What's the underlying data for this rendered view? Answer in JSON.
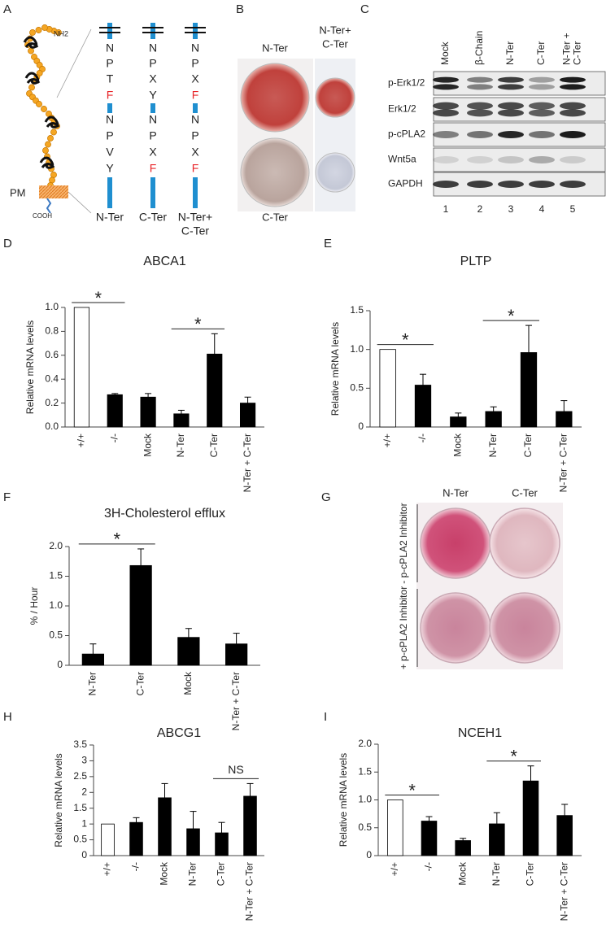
{
  "panel_labels": [
    "A",
    "B",
    "C",
    "D",
    "E",
    "F",
    "G",
    "H",
    "I"
  ],
  "panel_a": {
    "top_label": "NH2",
    "membrane_label": "PM",
    "bottom_label": "COOH",
    "columns": [
      {
        "label": [
          "N-Ter"
        ],
        "residues": [
          "N",
          "P",
          "T",
          "F",
          "N",
          "P",
          "V",
          "Y"
        ],
        "colors": [
          "#222222",
          "#222222",
          "#222222",
          "#e8262a",
          "#222222",
          "#222222",
          "#222222",
          "#222222"
        ]
      },
      {
        "label": [
          "C-Ter"
        ],
        "residues": [
          "N",
          "P",
          "X",
          "Y",
          "N",
          "P",
          "X",
          "F"
        ],
        "colors": [
          "#222222",
          "#222222",
          "#222222",
          "#222222",
          "#222222",
          "#222222",
          "#222222",
          "#e8262a"
        ]
      },
      {
        "label": [
          "N-Ter+",
          "C-Ter"
        ],
        "residues": [
          "N",
          "P",
          "X",
          "F",
          "N",
          "P",
          "X",
          "F"
        ],
        "colors": [
          "#222222",
          "#222222",
          "#222222",
          "#e8262a",
          "#222222",
          "#222222",
          "#222222",
          "#e8262a"
        ]
      }
    ]
  },
  "panel_b": {
    "top_left": "N-Ter",
    "top_right": [
      "N-Ter+",
      "C-Ter"
    ],
    "bottom_left": "C-Ter"
  },
  "panel_c": {
    "lanes": [
      [
        "Mock"
      ],
      [
        "β-Chain"
      ],
      [
        "N-Ter"
      ],
      [
        "C-Ter"
      ],
      [
        "N-Ter +",
        "C-Ter"
      ]
    ],
    "rows": [
      "p-Erk1/2",
      "Erk1/2",
      "p-cPLA2",
      "Wnt5a",
      "GAPDH"
    ],
    "lane_numbers": [
      "1",
      "2",
      "3",
      "4",
      "5"
    ]
  },
  "panel_g": {
    "columns": [
      "N-Ter",
      "C-Ter"
    ],
    "rows": [
      "- p-cPLA2 Inhibitor",
      "+ p-cPLA2 Inhibitor"
    ]
  },
  "chart_data": [
    {
      "type": "bar",
      "title": "ABCA1",
      "ylabel": "Relative mRNA levels",
      "categories": [
        "+/+",
        "-/-",
        "Mock",
        "N-Ter",
        "C-Ter",
        "N-Ter + C-Ter"
      ],
      "values": [
        1.0,
        0.27,
        0.25,
        0.11,
        0.61,
        0.2
      ],
      "errors": [
        0,
        0.01,
        0.03,
        0.03,
        0.17,
        0.05
      ],
      "colors": [
        "#ffffff",
        "#000000",
        "#000000",
        "#000000",
        "#000000",
        "#000000"
      ],
      "ylim": [
        0,
        1.0
      ],
      "yticks": [
        {
          "value": 0,
          "label": "0.0"
        },
        0.2,
        0.4,
        0.6,
        0.8,
        {
          "value": 1.0,
          "label": "1.0"
        }
      ],
      "annotations": [
        {
          "text": "*",
          "from": 0,
          "to": 1
        },
        {
          "text": "*",
          "from": 3,
          "to": 4
        }
      ]
    },
    {
      "type": "bar",
      "title": "PLTP",
      "ylabel": "Relative mRNA levels",
      "categories": [
        "+/+",
        "-/-",
        "Mock",
        "N-Ter",
        "C-Ter",
        "N-Ter + C-Ter"
      ],
      "values": [
        1.0,
        0.54,
        0.13,
        0.2,
        0.96,
        0.2
      ],
      "errors": [
        0,
        0.14,
        0.05,
        0.06,
        0.35,
        0.14
      ],
      "colors": [
        "#ffffff",
        "#000000",
        "#000000",
        "#000000",
        "#000000",
        "#000000"
      ],
      "ylim": [
        0,
        1.5
      ],
      "yticks": [
        0,
        0.5,
        {
          "value": 1.0,
          "label": "1.0"
        },
        1.5
      ],
      "annotations": [
        {
          "text": "*",
          "from": 0,
          "to": 1
        },
        {
          "text": "*",
          "from": 3,
          "to": 4
        }
      ]
    },
    {
      "type": "bar",
      "title": "3H-Cholesterol efflux",
      "ylabel": "% / Hour",
      "categories": [
        "N-Ter",
        "C-Ter",
        "Mock",
        "N-Ter + C-Ter"
      ],
      "values": [
        0.19,
        1.68,
        0.47,
        0.36
      ],
      "errors": [
        0.17,
        0.28,
        0.15,
        0.18
      ],
      "colors": [
        "#000000",
        "#000000",
        "#000000",
        "#000000"
      ],
      "ylim": [
        0,
        2.0
      ],
      "yticks": [
        0,
        0.5,
        {
          "value": 1.0,
          "label": "1.0"
        },
        1.5,
        {
          "value": 2.0,
          "label": "2.0"
        }
      ],
      "annotations": [
        {
          "text": "*",
          "from": 0,
          "to": 1
        }
      ]
    },
    {
      "type": "bar",
      "title": "ABCG1",
      "ylabel": "Relative mRNA levels",
      "categories": [
        "+/+",
        "-/-",
        "Mock",
        "N-Ter",
        "C-Ter",
        "N-Ter + C-Ter"
      ],
      "values": [
        1.0,
        1.05,
        1.83,
        0.85,
        0.72,
        1.88
      ],
      "errors": [
        0,
        0.15,
        0.45,
        0.55,
        0.33,
        0.4
      ],
      "colors": [
        "#ffffff",
        "#000000",
        "#000000",
        "#000000",
        "#000000",
        "#000000"
      ],
      "ylim": [
        0,
        3.5
      ],
      "yticks": [
        0,
        0.5,
        1,
        1.5,
        2,
        2.5,
        3,
        3.5
      ],
      "annotations": [
        {
          "text": "NS",
          "from": 4,
          "to": 5
        }
      ]
    },
    {
      "type": "bar",
      "title": "NCEH1",
      "ylabel": "Relative mRNA levels",
      "categories": [
        "+/+",
        "-/-",
        "Mock",
        "N-Ter",
        "C-Ter",
        "N-Ter + C-Ter"
      ],
      "values": [
        1.0,
        0.62,
        0.27,
        0.57,
        1.34,
        0.72
      ],
      "errors": [
        0,
        0.08,
        0.04,
        0.2,
        0.27,
        0.2
      ],
      "colors": [
        "#ffffff",
        "#000000",
        "#000000",
        "#000000",
        "#000000",
        "#000000"
      ],
      "ylim": [
        0,
        2.0
      ],
      "yticks": [
        0,
        0.5,
        {
          "value": 1.0,
          "label": "1.0"
        },
        1.5,
        {
          "value": 2.0,
          "label": "2.0"
        }
      ],
      "annotations": [
        {
          "text": "*",
          "from": 0,
          "to": 1
        },
        {
          "text": "*",
          "from": 3,
          "to": 4
        }
      ]
    }
  ]
}
